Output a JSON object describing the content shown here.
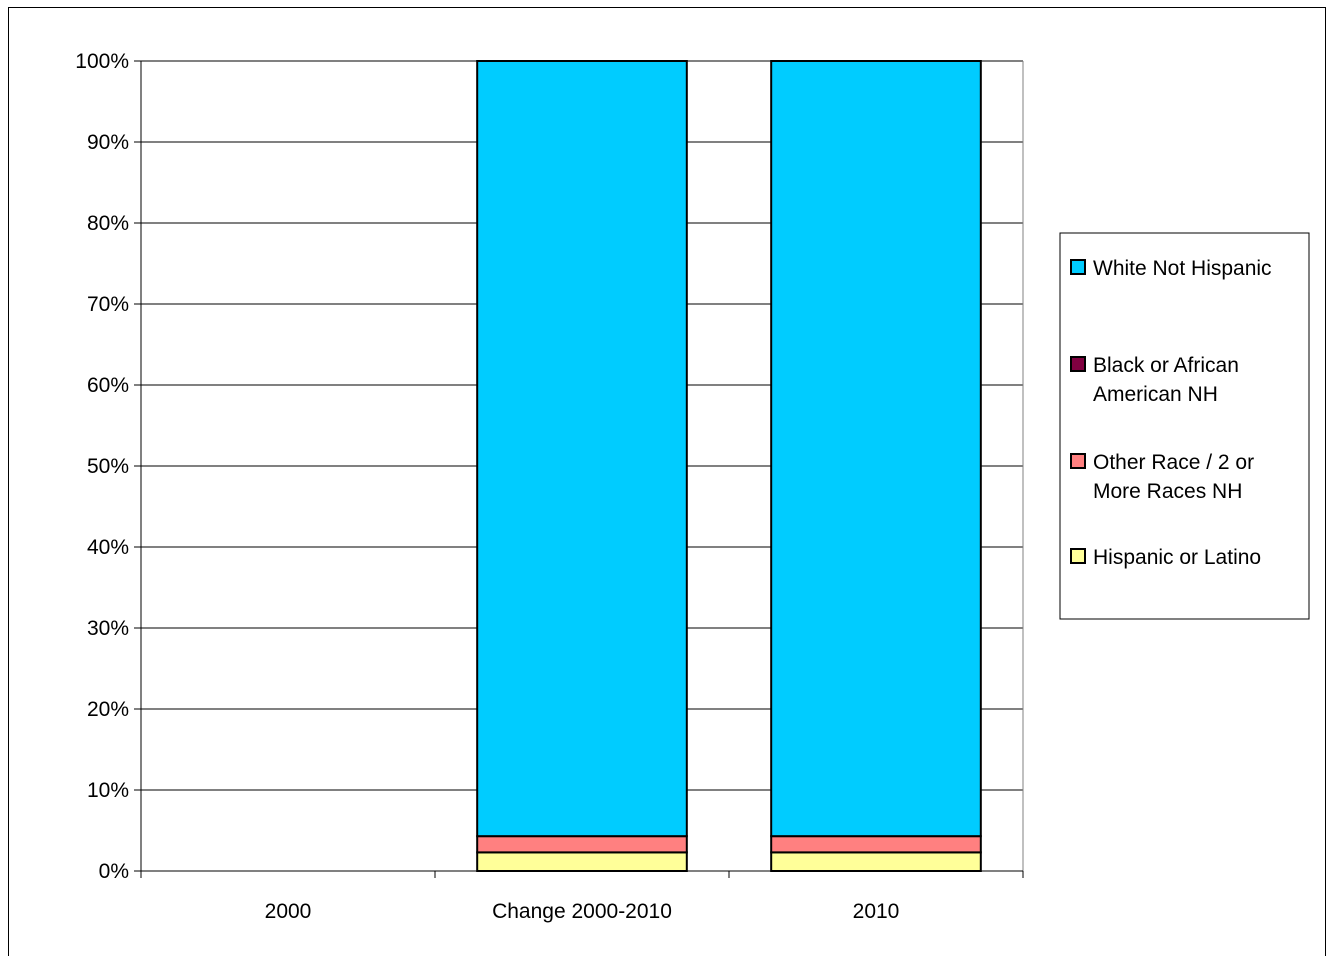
{
  "chart_data": {
    "type": "bar",
    "stacked": true,
    "stack_mode": "percent",
    "categories": [
      "2000",
      "Change 2000-2010",
      "2010"
    ],
    "series": [
      {
        "name": "Hispanic or Latino",
        "color": "#FFFF99",
        "values": [
          0,
          2.3,
          2.3
        ]
      },
      {
        "name": "Other Race / 2 or More Races NH",
        "color": "#FF8080",
        "values": [
          0,
          2.0,
          2.0
        ]
      },
      {
        "name": "Black or African American NH",
        "color": "#800040",
        "values": [
          0,
          0,
          0
        ]
      },
      {
        "name": "White Not Hispanic",
        "color": "#00CCFF",
        "values": [
          0,
          95.7,
          95.7
        ]
      }
    ],
    "legend_order": [
      "White Not Hispanic",
      "Black or African American NH",
      "Other Race / 2 or More Races NH",
      "Hispanic or Latino"
    ],
    "legend_position": "right",
    "y_ticks": [
      "0%",
      "10%",
      "20%",
      "30%",
      "40%",
      "50%",
      "60%",
      "70%",
      "80%",
      "90%",
      "100%"
    ],
    "ylim": [
      0,
      100
    ],
    "grid": true,
    "title": "",
    "xlabel": "",
    "ylabel": ""
  }
}
